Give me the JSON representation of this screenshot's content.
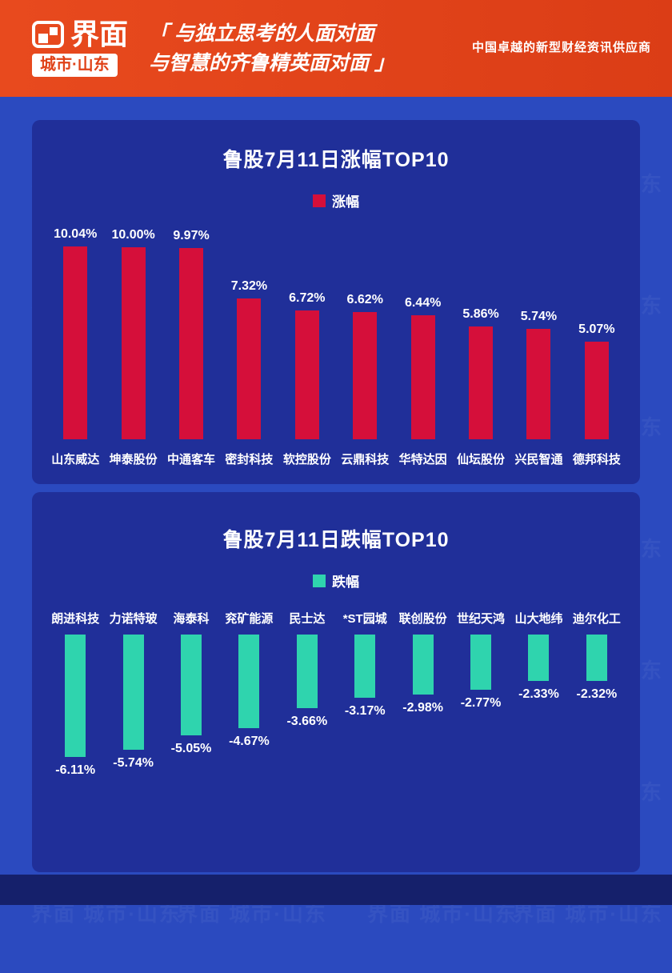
{
  "header": {
    "logo_brand": "界面",
    "logo_sub": "城市·山东",
    "quote_line1": "「 与独立思考的人面对面",
    "quote_line2": "与智慧的齐鲁精英面对面 」",
    "tagline": "中国卓越的新型财经资讯供应商"
  },
  "watermark_text": "界面 城市·山东",
  "colors": {
    "header_bg": "#e8471d",
    "page_bg": "#2b4abf",
    "panel_bg": "#202f99",
    "gain_bar": "#d50f3a",
    "loss_bar": "#2fd4ae"
  },
  "chart_data": [
    {
      "type": "bar",
      "title": "鲁股7月11日涨幅TOP10",
      "legend": "涨幅",
      "legend_position": "top",
      "bar_color": "#d50f3a",
      "categories": [
        "山东威达",
        "坤泰股份",
        "中通客车",
        "密封科技",
        "软控股份",
        "云鼎科技",
        "华特达因",
        "仙坛股份",
        "兴民智通",
        "德邦科技"
      ],
      "values": [
        10.04,
        10.0,
        9.97,
        7.32,
        6.72,
        6.62,
        6.44,
        5.86,
        5.74,
        5.07
      ],
      "labels": [
        "10.04%",
        "10.00%",
        "9.97%",
        "7.32%",
        "6.72%",
        "6.62%",
        "6.44%",
        "5.86%",
        "5.74%",
        "5.07%"
      ],
      "xlabel": "",
      "ylabel": "",
      "ylim": [
        0,
        10.5
      ],
      "grid": false
    },
    {
      "type": "bar",
      "title": "鲁股7月11日跌幅TOP10",
      "legend": "跌幅",
      "legend_position": "top",
      "bar_color": "#2fd4ae",
      "categories": [
        "朗进科技",
        "力诺特玻",
        "海泰科",
        "兖矿能源",
        "民士达",
        "*ST园城",
        "联创股份",
        "世纪天鸿",
        "山大地纬",
        "迪尔化工"
      ],
      "values": [
        -6.11,
        -5.74,
        -5.05,
        -4.67,
        -3.66,
        -3.17,
        -2.98,
        -2.77,
        -2.33,
        -2.32
      ],
      "labels": [
        "-6.11%",
        "-5.74%",
        "-5.05%",
        "-4.67%",
        "-3.66%",
        "-3.17%",
        "-2.98%",
        "-2.77%",
        "-2.33%",
        "-2.32%"
      ],
      "xlabel": "",
      "ylabel": "",
      "ylim": [
        -6.5,
        0
      ],
      "grid": false
    }
  ]
}
